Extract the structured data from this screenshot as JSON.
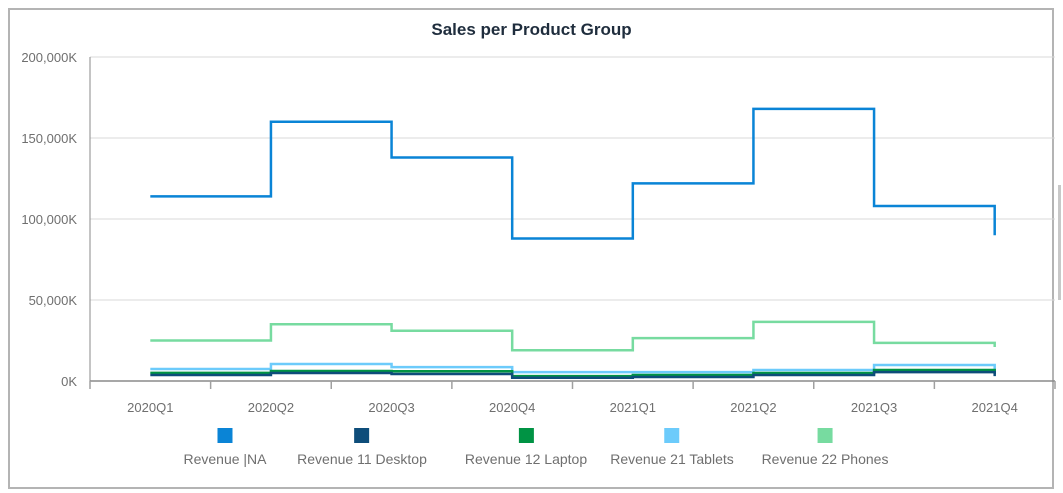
{
  "chart_data": {
    "type": "line",
    "step": "after",
    "title": "Sales per Product Group",
    "xlabel": "",
    "ylabel": "",
    "categories": [
      "2020Q1",
      "2020Q2",
      "2020Q3",
      "2020Q4",
      "2021Q1",
      "2021Q2",
      "2021Q3",
      "2021Q4"
    ],
    "ylim": [
      0,
      200000
    ],
    "yticks": [
      0,
      50000,
      100000,
      150000,
      200000
    ],
    "ytick_labels": [
      "0K",
      "50,000K",
      "100,000K",
      "150,000K",
      "200,000K"
    ],
    "grid": true,
    "legend": "bottom",
    "series": [
      {
        "name": "Revenue |NA",
        "color": "#0a84d6",
        "values": [
          114000,
          160000,
          138000,
          88000,
          122000,
          168000,
          108000,
          90000
        ]
      },
      {
        "name": "Revenue 11 Desktop",
        "color": "#0e4d7a",
        "values": [
          3700,
          4900,
          4300,
          2000,
          2500,
          3700,
          5500,
          3000
        ]
      },
      {
        "name": "Revenue 12 Laptop",
        "color": "#009344",
        "values": [
          5000,
          6200,
          6000,
          3000,
          3700,
          4900,
          6800,
          4300
        ]
      },
      {
        "name": "Revenue 21 Tablets",
        "color": "#6ccbfb",
        "values": [
          7400,
          10500,
          8600,
          5500,
          5500,
          6800,
          9900,
          6200
        ]
      },
      {
        "name": "Revenue 22 Phones",
        "color": "#77dba0",
        "values": [
          25000,
          35000,
          31000,
          19000,
          26500,
          36500,
          23500,
          21000
        ]
      }
    ]
  }
}
